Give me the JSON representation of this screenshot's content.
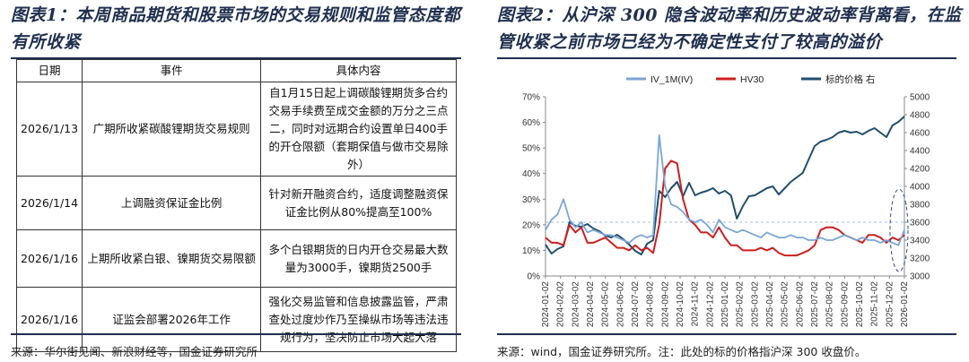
{
  "left": {
    "title": "图表1：本周商品期货和股票市场的交易规则和监管态度都有所收紧",
    "table": {
      "headers": [
        "日期",
        "事件",
        "具体内容"
      ],
      "rows": [
        [
          "2026/1/13",
          "广期所收紧碳酸锂期货交易规则",
          "自1月15日起上调碳酸锂期货多合约交易手续费至成交金额的万分之三点二，同时对远期合约设置单日400手的开仓限额（套期保值与做市交易除外）"
        ],
        [
          "2026/1/14",
          "上调融资保证金比例",
          "针对新开融资合约，适度调整融资保证金比例从80%提高至100%"
        ],
        [
          "2026/1/16",
          "上期所收紧白银、镍期货交易限额",
          "多个白银期货的日内开仓交易最大数量为3000手，镍期货2500手"
        ],
        [
          "2026/1/16",
          "证监会部署2026年工作",
          "强化交易监管和信息披露监管，严肃查处过度炒作乃至操纵市场等违法违规行为，坚决防止市场大起大落"
        ]
      ]
    },
    "source": "来源：华尔街见闻、新浪财经等，国金证券研究所"
  },
  "right": {
    "title": "图表2：从沪深 300 隐含波动率和历史波动率背离看，在监管收紧之前市场已经为不确定性支付了较高的溢价",
    "source": "来源：wind，国金证券研究所。注：此处的标的价格指沪深 300 收盘价。"
  },
  "colors": {
    "title": "#1f2f4e",
    "iv": "#7aa6d6",
    "hv": "#cc1f1f",
    "price": "#1f4e6e"
  },
  "chart_data": {
    "type": "line",
    "legend": [
      "IV_1M(IV)",
      "HV30",
      "标的价格 右"
    ],
    "legend_position": "top",
    "x_labels": [
      "2024-01-02",
      "2024-02-02",
      "2024-03-02",
      "2024-04-02",
      "2024-05-02",
      "2024-06-02",
      "2024-07-02",
      "2024-08-02",
      "2024-09-02",
      "2024-10-02",
      "2024-11-02",
      "2024-12-02",
      "2025-01-02",
      "2025-02-02",
      "2025-03-02",
      "2025-04-02",
      "2025-05-02",
      "2025-06-02",
      "2025-07-02",
      "2025-08-02",
      "2025-09-02",
      "2025-10-02",
      "2025-11-02",
      "2025-12-02",
      "2026-01-02"
    ],
    "y_left": {
      "min": 0,
      "max": 70,
      "ticks": [
        "0%",
        "10%",
        "20%",
        "30%",
        "40%",
        "50%",
        "60%",
        "70%"
      ]
    },
    "y_right": {
      "min": 3000,
      "max": 5000,
      "ticks": [
        "3000",
        "3200",
        "3400",
        "3600",
        "3800",
        "4000",
        "4200",
        "4400",
        "4600",
        "4800",
        "5000"
      ]
    },
    "reference_line": {
      "value": 21,
      "axis": "left",
      "style": "dashed"
    },
    "series": [
      {
        "name": "IV_1M(IV)",
        "axis": "left",
        "values": [
          18,
          22,
          24,
          30,
          22,
          19,
          21,
          17,
          18,
          17,
          16,
          16,
          15,
          14,
          13,
          15,
          16,
          15,
          16,
          55,
          35,
          28,
          27,
          25,
          22,
          21,
          22,
          20,
          17,
          22,
          19,
          18,
          17,
          18,
          17,
          16,
          15,
          17,
          16,
          15,
          15,
          16,
          15,
          15,
          14,
          14,
          15,
          14,
          14,
          15,
          16,
          15,
          14,
          15,
          14,
          14,
          13,
          14,
          13,
          12,
          18
        ]
      },
      {
        "name": "HV30",
        "axis": "left",
        "values": [
          15,
          13,
          13,
          12,
          20,
          17,
          19,
          13,
          13,
          14,
          15,
          13,
          11,
          11,
          10,
          12,
          10,
          11,
          9,
          20,
          42,
          45,
          44,
          30,
          22,
          20,
          17,
          17,
          15,
          19,
          15,
          12,
          12,
          10,
          10,
          10,
          11,
          10,
          11,
          9,
          8,
          8,
          8,
          9,
          10,
          12,
          18,
          19,
          19,
          18,
          16,
          15,
          14,
          13,
          16,
          16,
          15,
          13,
          15,
          14,
          16
        ]
      },
      {
        "name": "标的价格 右",
        "axis": "right",
        "values": [
          3350,
          3250,
          3300,
          3330,
          3600,
          3560,
          3550,
          3580,
          3530,
          3500,
          3450,
          3430,
          3460,
          3410,
          3350,
          3280,
          3240,
          3360,
          3400,
          3950,
          3880,
          3980,
          4050,
          3890,
          4040,
          3900,
          3930,
          3950,
          3980,
          3920,
          3950,
          3900,
          3640,
          3780,
          3890,
          3900,
          3940,
          3980,
          4000,
          3910,
          3980,
          4050,
          4100,
          4150,
          4300,
          4450,
          4500,
          4520,
          4550,
          4600,
          4620,
          4600,
          4610,
          4580,
          4620,
          4650,
          4600,
          4550,
          4680,
          4720,
          4780
        ]
      }
    ]
  }
}
